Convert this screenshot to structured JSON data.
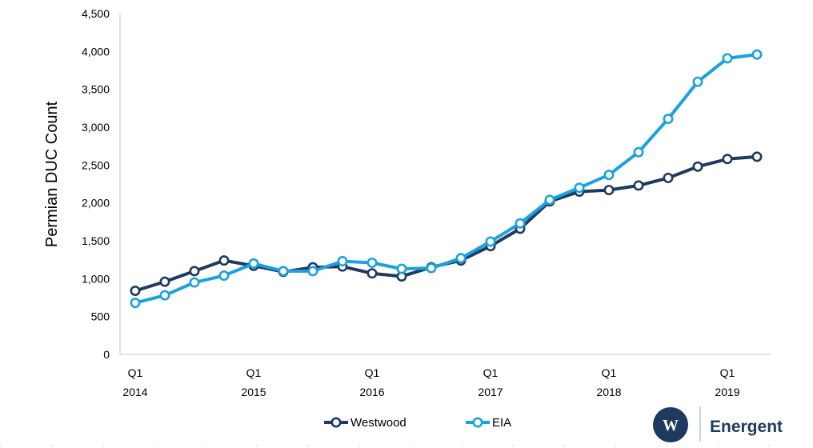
{
  "chart_data": {
    "type": "line",
    "ylabel": "Permian DUC Count",
    "ylim": [
      0,
      4500
    ],
    "y_ticks": [
      "0",
      "500",
      "1,000",
      "1,500",
      "2,000",
      "2,500",
      "3,000",
      "3,500",
      "4,000",
      "4,500"
    ],
    "x_tick_labels": [
      {
        "quarter": "Q1",
        "year": "2014"
      },
      {
        "quarter": "Q1",
        "year": "2015"
      },
      {
        "quarter": "Q1",
        "year": "2016"
      },
      {
        "quarter": "Q1",
        "year": "2017"
      },
      {
        "quarter": "Q1",
        "year": "2018"
      },
      {
        "quarter": "Q1",
        "year": "2019"
      }
    ],
    "categories": [
      "Q1 2014",
      "Q2 2014",
      "Q3 2014",
      "Q4 2014",
      "Q1 2015",
      "Q2 2015",
      "Q3 2015",
      "Q4 2015",
      "Q1 2016",
      "Q2 2016",
      "Q3 2016",
      "Q4 2016",
      "Q1 2017",
      "Q2 2017",
      "Q3 2017",
      "Q4 2017",
      "Q1 2018",
      "Q2 2018",
      "Q3 2018",
      "Q4 2018",
      "Q1 2019",
      "Q2 2019"
    ],
    "series": [
      {
        "name": "Westwood",
        "color": "#1f3a5f",
        "values": [
          840,
          960,
          1100,
          1240,
          1170,
          1090,
          1150,
          1160,
          1070,
          1030,
          1150,
          1240,
          1430,
          1660,
          2020,
          2150,
          2170,
          2230,
          2330,
          2480,
          2580,
          2610
        ]
      },
      {
        "name": "EIA",
        "color": "#1aa1e0",
        "values": [
          680,
          780,
          950,
          1040,
          1200,
          1100,
          1100,
          1230,
          1210,
          1130,
          1140,
          1270,
          1490,
          1730,
          2040,
          2200,
          2370,
          2670,
          3110,
          3600,
          3910,
          3960
        ]
      }
    ],
    "grid": false,
    "legend_position": "bottom-center"
  },
  "brand": {
    "logo_letter": "W",
    "name": "Energent"
  }
}
